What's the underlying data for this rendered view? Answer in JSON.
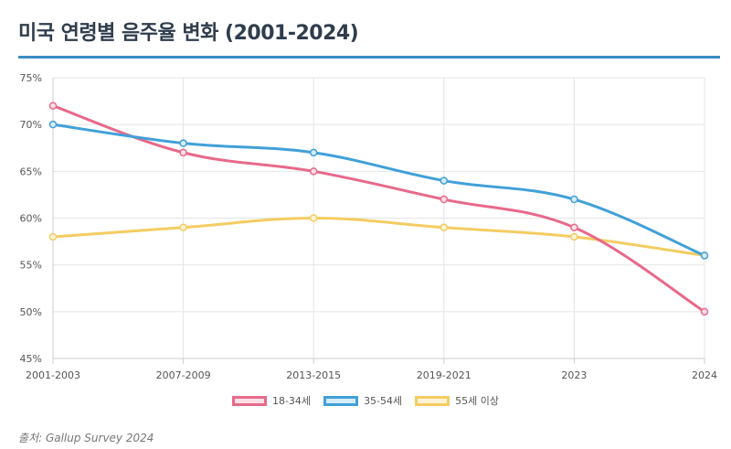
{
  "title": "미국 연령별 음주율 변화 (2001-2024)",
  "source": "출처: Gallup Survey 2024",
  "colors": {
    "accent": "#3a8dc5"
  },
  "chart_data": {
    "type": "line",
    "title": "",
    "xlabel": "",
    "ylabel": "",
    "x": [
      "2001-2003",
      "2007-2009",
      "2013-2015",
      "2019-2021",
      "2023",
      "2024"
    ],
    "ylim": [
      45,
      75
    ],
    "yticks": [
      45,
      50,
      55,
      60,
      65,
      70,
      75
    ],
    "y_tick_suffix": "%",
    "grid": true,
    "legend_position": "bottom",
    "series": [
      {
        "name": "18-34세",
        "values": [
          72,
          67,
          65,
          62,
          59,
          50
        ],
        "color": "#e8698a",
        "fill": "#fde0e7"
      },
      {
        "name": "35-54세",
        "values": [
          70,
          68,
          67,
          64,
          62,
          56
        ],
        "color": "#41a0d8",
        "fill": "#d6ecf8"
      },
      {
        "name": "55세 이상",
        "values": [
          58,
          59,
          60,
          59,
          58,
          56
        ],
        "color": "#f4cc62",
        "fill": "#fdf3d6"
      }
    ]
  }
}
